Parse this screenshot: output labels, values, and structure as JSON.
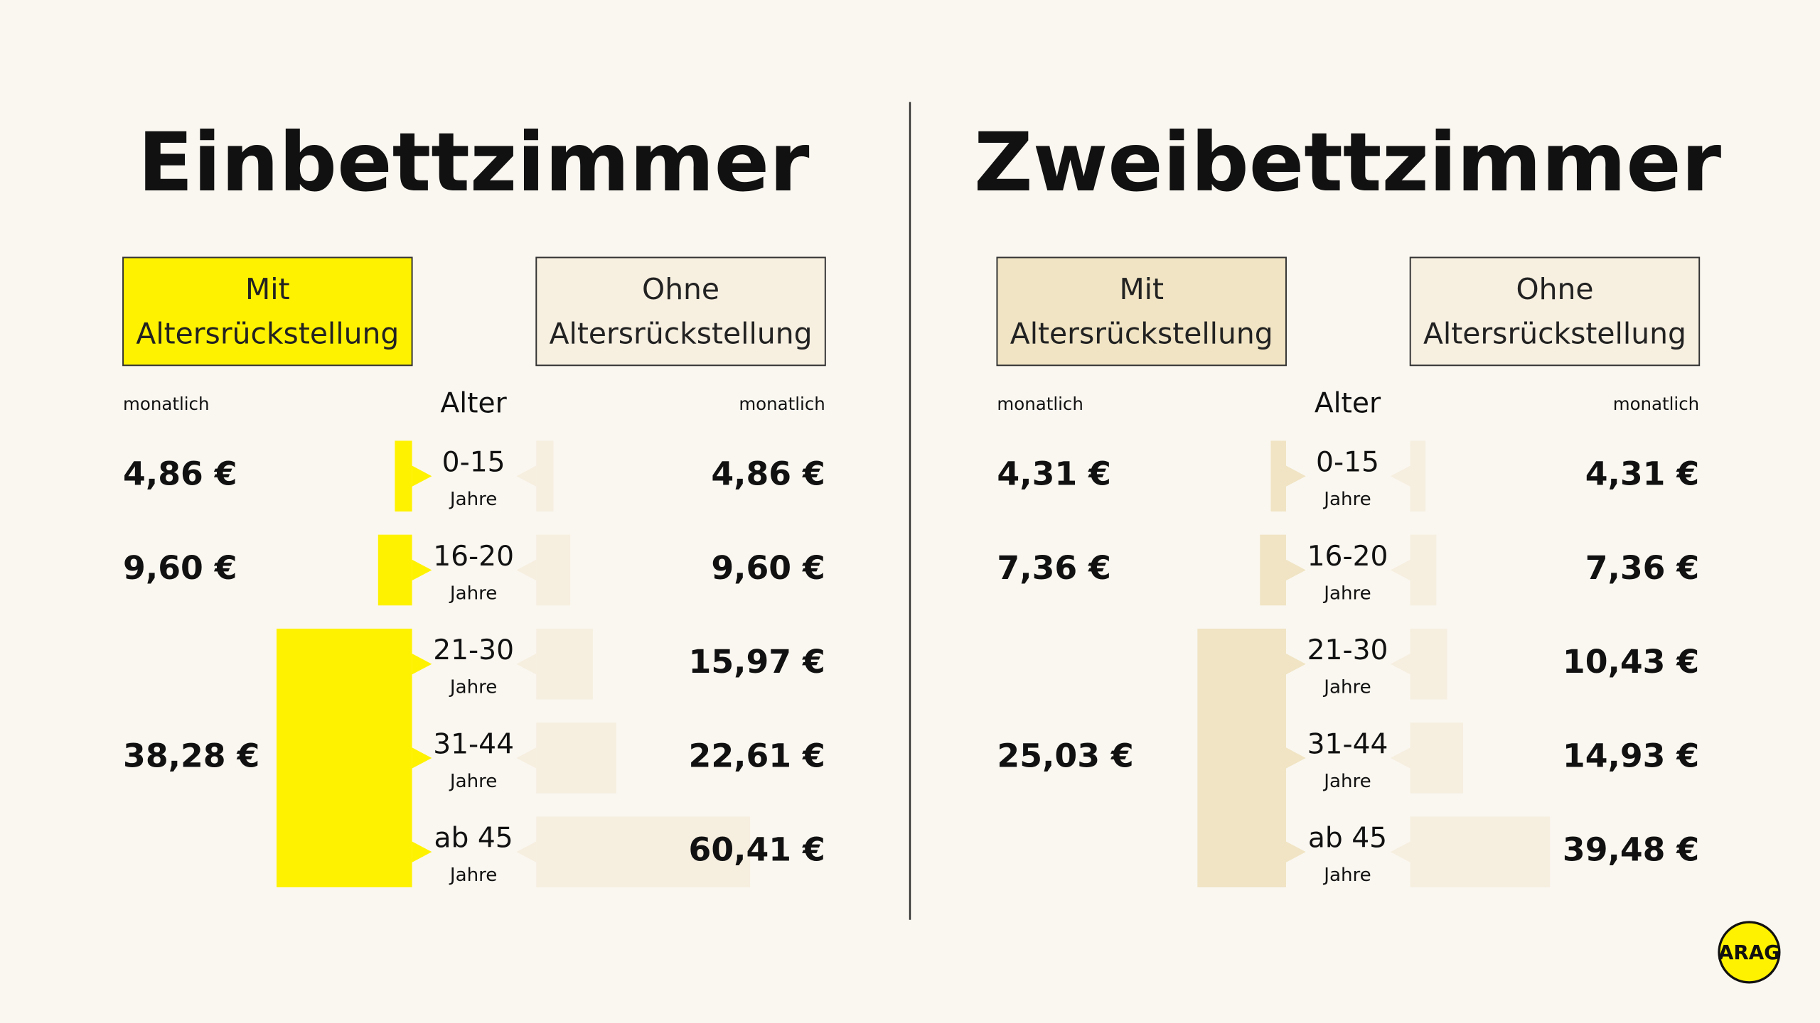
{
  "chart_data": [
    {
      "type": "bar",
      "title": "Einbettzimmer",
      "age_label": "Alter",
      "period_label": "monatlich",
      "age_groups": [
        "0-15",
        "16-20",
        "21-30",
        "31-44",
        "ab 45"
      ],
      "age_unit": "Jahre",
      "series": [
        {
          "name": "Mit Altersrückstellung",
          "color": "#fff200",
          "tab_color": "#fff200",
          "values": [
            4.86,
            9.6,
            38.28
          ],
          "value_labels": [
            "4,86 €",
            "9,60 €",
            "38,28 €"
          ]
        },
        {
          "name": "Ohne Altersrückstellung",
          "color": "#f6eedf",
          "tab_color": "#f7efe0",
          "values": [
            4.86,
            9.6,
            15.97,
            22.61,
            60.41
          ],
          "value_labels": [
            "4,86 €",
            "9,60 €",
            "15,97 €",
            "22,61 €",
            "60,41 €"
          ]
        }
      ]
    },
    {
      "type": "bar",
      "title": "Zweibettzimmer",
      "age_label": "Alter",
      "period_label": "monatlich",
      "age_groups": [
        "0-15",
        "16-20",
        "21-30",
        "31-44",
        "ab 45"
      ],
      "age_unit": "Jahre",
      "series": [
        {
          "name": "Mit Altersrückstellung",
          "color": "#f0e4c4",
          "tab_color": "#f0e4c4",
          "values": [
            4.31,
            7.36,
            25.03
          ],
          "value_labels": [
            "4,31 €",
            "7,36 €",
            "25,03 €"
          ]
        },
        {
          "name": "Ohne Altersrückstellung",
          "color": "#f6eedf",
          "tab_color": "#f7efe0",
          "values": [
            4.31,
            7.36,
            10.43,
            14.93,
            39.48
          ],
          "value_labels": [
            "4,31 €",
            "7,36 €",
            "10,43 €",
            "14,93 €",
            "39,48 €"
          ]
        }
      ]
    }
  ],
  "logo": "ARAG"
}
